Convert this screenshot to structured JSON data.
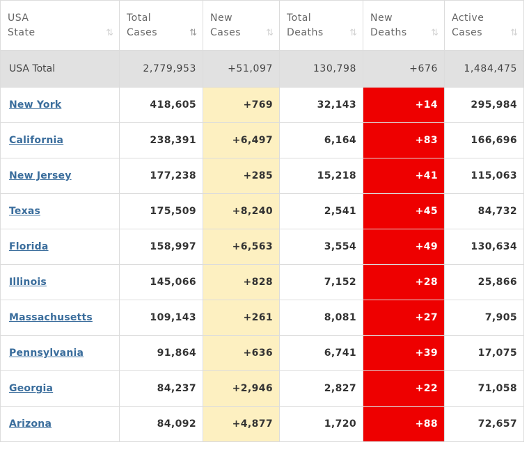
{
  "headers": {
    "state": [
      "USA",
      "State"
    ],
    "total_cases": [
      "Total",
      "Cases"
    ],
    "new_cases": [
      "New",
      "Cases"
    ],
    "total_deaths": [
      "Total",
      "Deaths"
    ],
    "new_deaths": [
      "New",
      "Deaths"
    ],
    "active_cases": [
      "Active",
      "Cases"
    ]
  },
  "sort_icons": {
    "inactive": "⇅",
    "active": "⇅"
  },
  "totals": {
    "name": "USA Total",
    "total_cases": "2,779,953",
    "new_cases": "+51,097",
    "total_deaths": "130,798",
    "new_deaths": "+676",
    "active_cases": "1,484,475"
  },
  "rows": [
    {
      "name": "New York",
      "total_cases": "418,605",
      "new_cases": "+769",
      "total_deaths": "32,143",
      "new_deaths": "+14",
      "active_cases": "295,984"
    },
    {
      "name": "California",
      "total_cases": "238,391",
      "new_cases": "+6,497",
      "total_deaths": "6,164",
      "new_deaths": "+83",
      "active_cases": "166,696"
    },
    {
      "name": "New Jersey",
      "total_cases": "177,238",
      "new_cases": "+285",
      "total_deaths": "15,218",
      "new_deaths": "+41",
      "active_cases": "115,063"
    },
    {
      "name": "Texas",
      "total_cases": "175,509",
      "new_cases": "+8,240",
      "total_deaths": "2,541",
      "new_deaths": "+45",
      "active_cases": "84,732"
    },
    {
      "name": "Florida",
      "total_cases": "158,997",
      "new_cases": "+6,563",
      "total_deaths": "3,554",
      "new_deaths": "+49",
      "active_cases": "130,634"
    },
    {
      "name": "Illinois",
      "total_cases": "145,066",
      "new_cases": "+828",
      "total_deaths": "7,152",
      "new_deaths": "+28",
      "active_cases": "25,866"
    },
    {
      "name": "Massachusetts",
      "total_cases": "109,143",
      "new_cases": "+261",
      "total_deaths": "8,081",
      "new_deaths": "+27",
      "active_cases": "7,905"
    },
    {
      "name": "Pennsylvania",
      "total_cases": "91,864",
      "new_cases": "+636",
      "total_deaths": "6,741",
      "new_deaths": "+39",
      "active_cases": "17,075"
    },
    {
      "name": "Georgia",
      "total_cases": "84,237",
      "new_cases": "+2,946",
      "total_deaths": "2,827",
      "new_deaths": "+22",
      "active_cases": "71,058"
    },
    {
      "name": "Arizona",
      "total_cases": "84,092",
      "new_cases": "+4,877",
      "total_deaths": "1,720",
      "new_deaths": "+88",
      "active_cases": "72,657"
    }
  ],
  "colors": {
    "new_cases_bg": "#fdf0c1",
    "new_deaths_bg": "#ee0000",
    "total_row_bg": "#e1e1e1",
    "link": "#3a6d9c"
  }
}
